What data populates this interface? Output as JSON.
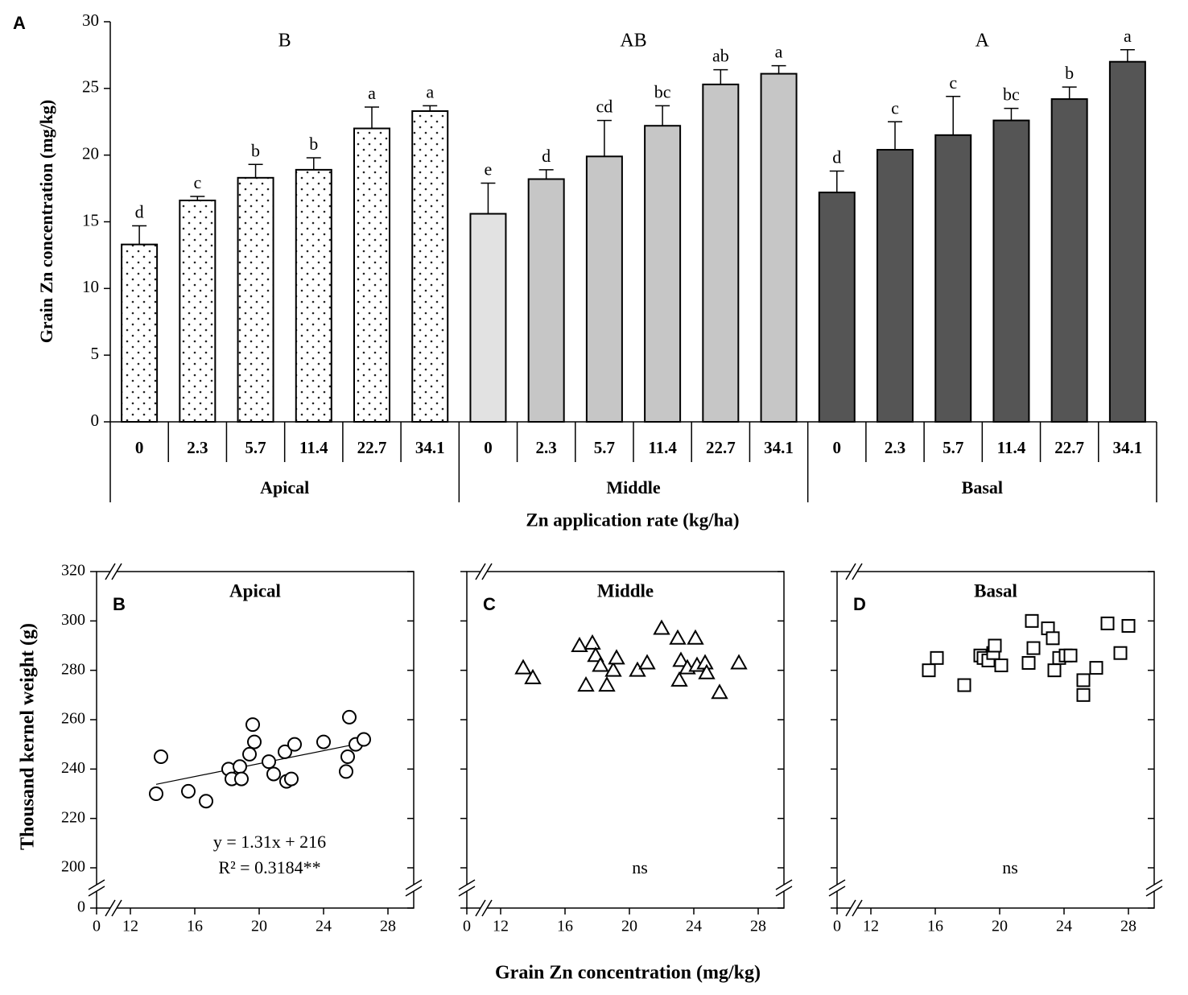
{
  "scatter_xlabel": "Grain Zn concentration (mg/kg)",
  "scatter_ylabel": "Thousand kernel weight (g)",
  "chart_data": [
    {
      "type": "bar",
      "panel": "A",
      "ylabel": "Grain Zn concentration (mg/kg)",
      "xlabel": "Zn application rate (kg/ha)",
      "ylim": [
        0,
        30
      ],
      "yticks": [
        0,
        5,
        10,
        15,
        20,
        25,
        30
      ],
      "categories": [
        "0",
        "2.3",
        "5.7",
        "11.4",
        "22.7",
        "34.1"
      ],
      "series": [
        {
          "name": "Apical",
          "group_letter": "B",
          "pattern": "dots",
          "values": [
            13.3,
            16.6,
            18.3,
            18.9,
            22.0,
            23.3
          ],
          "errors": [
            1.4,
            0.3,
            1.0,
            0.9,
            1.6,
            0.4
          ],
          "letters": [
            "d",
            "c",
            "b",
            "b",
            "a",
            "a"
          ]
        },
        {
          "name": "Middle",
          "group_letter": "AB",
          "colors": [
            "#e2e2e2",
            "#c6c6c6",
            "#c6c6c6",
            "#c6c6c6",
            "#c6c6c6",
            "#c6c6c6"
          ],
          "values": [
            15.6,
            18.2,
            19.9,
            22.2,
            25.3,
            26.1
          ],
          "errors": [
            2.3,
            0.7,
            2.7,
            1.5,
            1.1,
            0.6
          ],
          "letters": [
            "e",
            "d",
            "cd",
            "bc",
            "ab",
            "a"
          ]
        },
        {
          "name": "Basal",
          "group_letter": "A",
          "colors": [
            "#555555",
            "#555555",
            "#555555",
            "#555555",
            "#555555",
            "#555555"
          ],
          "values": [
            17.2,
            20.4,
            21.5,
            22.6,
            24.2,
            27.0
          ],
          "errors": [
            1.6,
            2.1,
            2.9,
            0.9,
            0.9,
            0.9
          ],
          "letters": [
            "d",
            "c",
            "c",
            "bc",
            "b",
            "a"
          ]
        }
      ]
    },
    {
      "type": "scatter",
      "panel": "B",
      "title": "Apical",
      "marker": "circle",
      "x": [
        13.6,
        13.9,
        15.6,
        16.7,
        18.1,
        18.3,
        18.8,
        18.9,
        19.4,
        19.6,
        19.7,
        20.6,
        20.9,
        21.6,
        21.7,
        22.0,
        22.2,
        24.0,
        25.4,
        25.5,
        25.6,
        26.0,
        26.5
      ],
      "y": [
        230,
        245,
        231,
        227,
        240,
        236,
        241,
        236,
        246,
        258,
        251,
        243,
        238,
        247,
        235,
        236,
        250,
        251,
        239,
        245,
        261,
        250,
        252
      ],
      "trendline": {
        "slope": 1.31,
        "intercept": 216
      },
      "annotations": [
        "y = 1.31x + 216",
        "R² = 0.3184**"
      ],
      "xlim": [
        0,
        29.6
      ],
      "xbreak": [
        0,
        12
      ],
      "xticks": [
        0,
        12,
        16,
        20,
        24,
        28
      ],
      "ylim": [
        0,
        320
      ],
      "ybreak": [
        0,
        200
      ],
      "yticks": [
        0,
        200,
        220,
        240,
        260,
        280,
        300,
        320
      ]
    },
    {
      "type": "scatter",
      "panel": "C",
      "title": "Middle",
      "marker": "triangle",
      "x": [
        13.4,
        14.0,
        16.9,
        17.3,
        17.7,
        17.9,
        18.2,
        18.6,
        19.0,
        19.2,
        20.5,
        21.1,
        22.0,
        23.0,
        23.1,
        23.2,
        23.6,
        24.1,
        24.2,
        24.7,
        24.8,
        25.6,
        26.8
      ],
      "y": [
        281,
        277,
        290,
        274,
        291,
        286,
        282,
        274,
        280,
        285,
        280,
        283,
        297,
        293,
        276,
        284,
        281,
        293,
        282,
        283,
        279,
        271,
        283
      ],
      "annotations": [
        "ns"
      ],
      "xlim": [
        0,
        29.6
      ],
      "xbreak": [
        0,
        12
      ],
      "xticks": [
        0,
        12,
        16,
        20,
        24,
        28
      ],
      "ylim": [
        0,
        320
      ],
      "ybreak": [
        0,
        200
      ],
      "yticks": [
        0,
        200,
        220,
        240,
        260,
        280,
        300,
        320
      ]
    },
    {
      "type": "scatter",
      "panel": "D",
      "title": "Basal",
      "marker": "square",
      "x": [
        15.6,
        16.1,
        17.8,
        18.8,
        19.0,
        19.3,
        19.6,
        19.7,
        20.1,
        21.8,
        22.0,
        22.1,
        23.0,
        23.3,
        23.4,
        23.7,
        24.1,
        24.4,
        25.2,
        25.2,
        26.0,
        26.7,
        27.5,
        28.0
      ],
      "y": [
        280,
        285,
        274,
        286,
        285,
        284,
        287,
        290,
        282,
        283,
        300,
        289,
        297,
        293,
        280,
        285,
        286,
        286,
        276,
        270,
        281,
        299,
        287,
        298
      ],
      "annotations": [
        "ns"
      ],
      "xlim": [
        0,
        29.6
      ],
      "xbreak": [
        0,
        12
      ],
      "xticks": [
        0,
        12,
        16,
        20,
        24,
        28
      ],
      "ylim": [
        0,
        320
      ],
      "ybreak": [
        0,
        200
      ],
      "yticks": [
        0,
        200,
        220,
        240,
        260,
        280,
        300,
        320
      ]
    }
  ]
}
